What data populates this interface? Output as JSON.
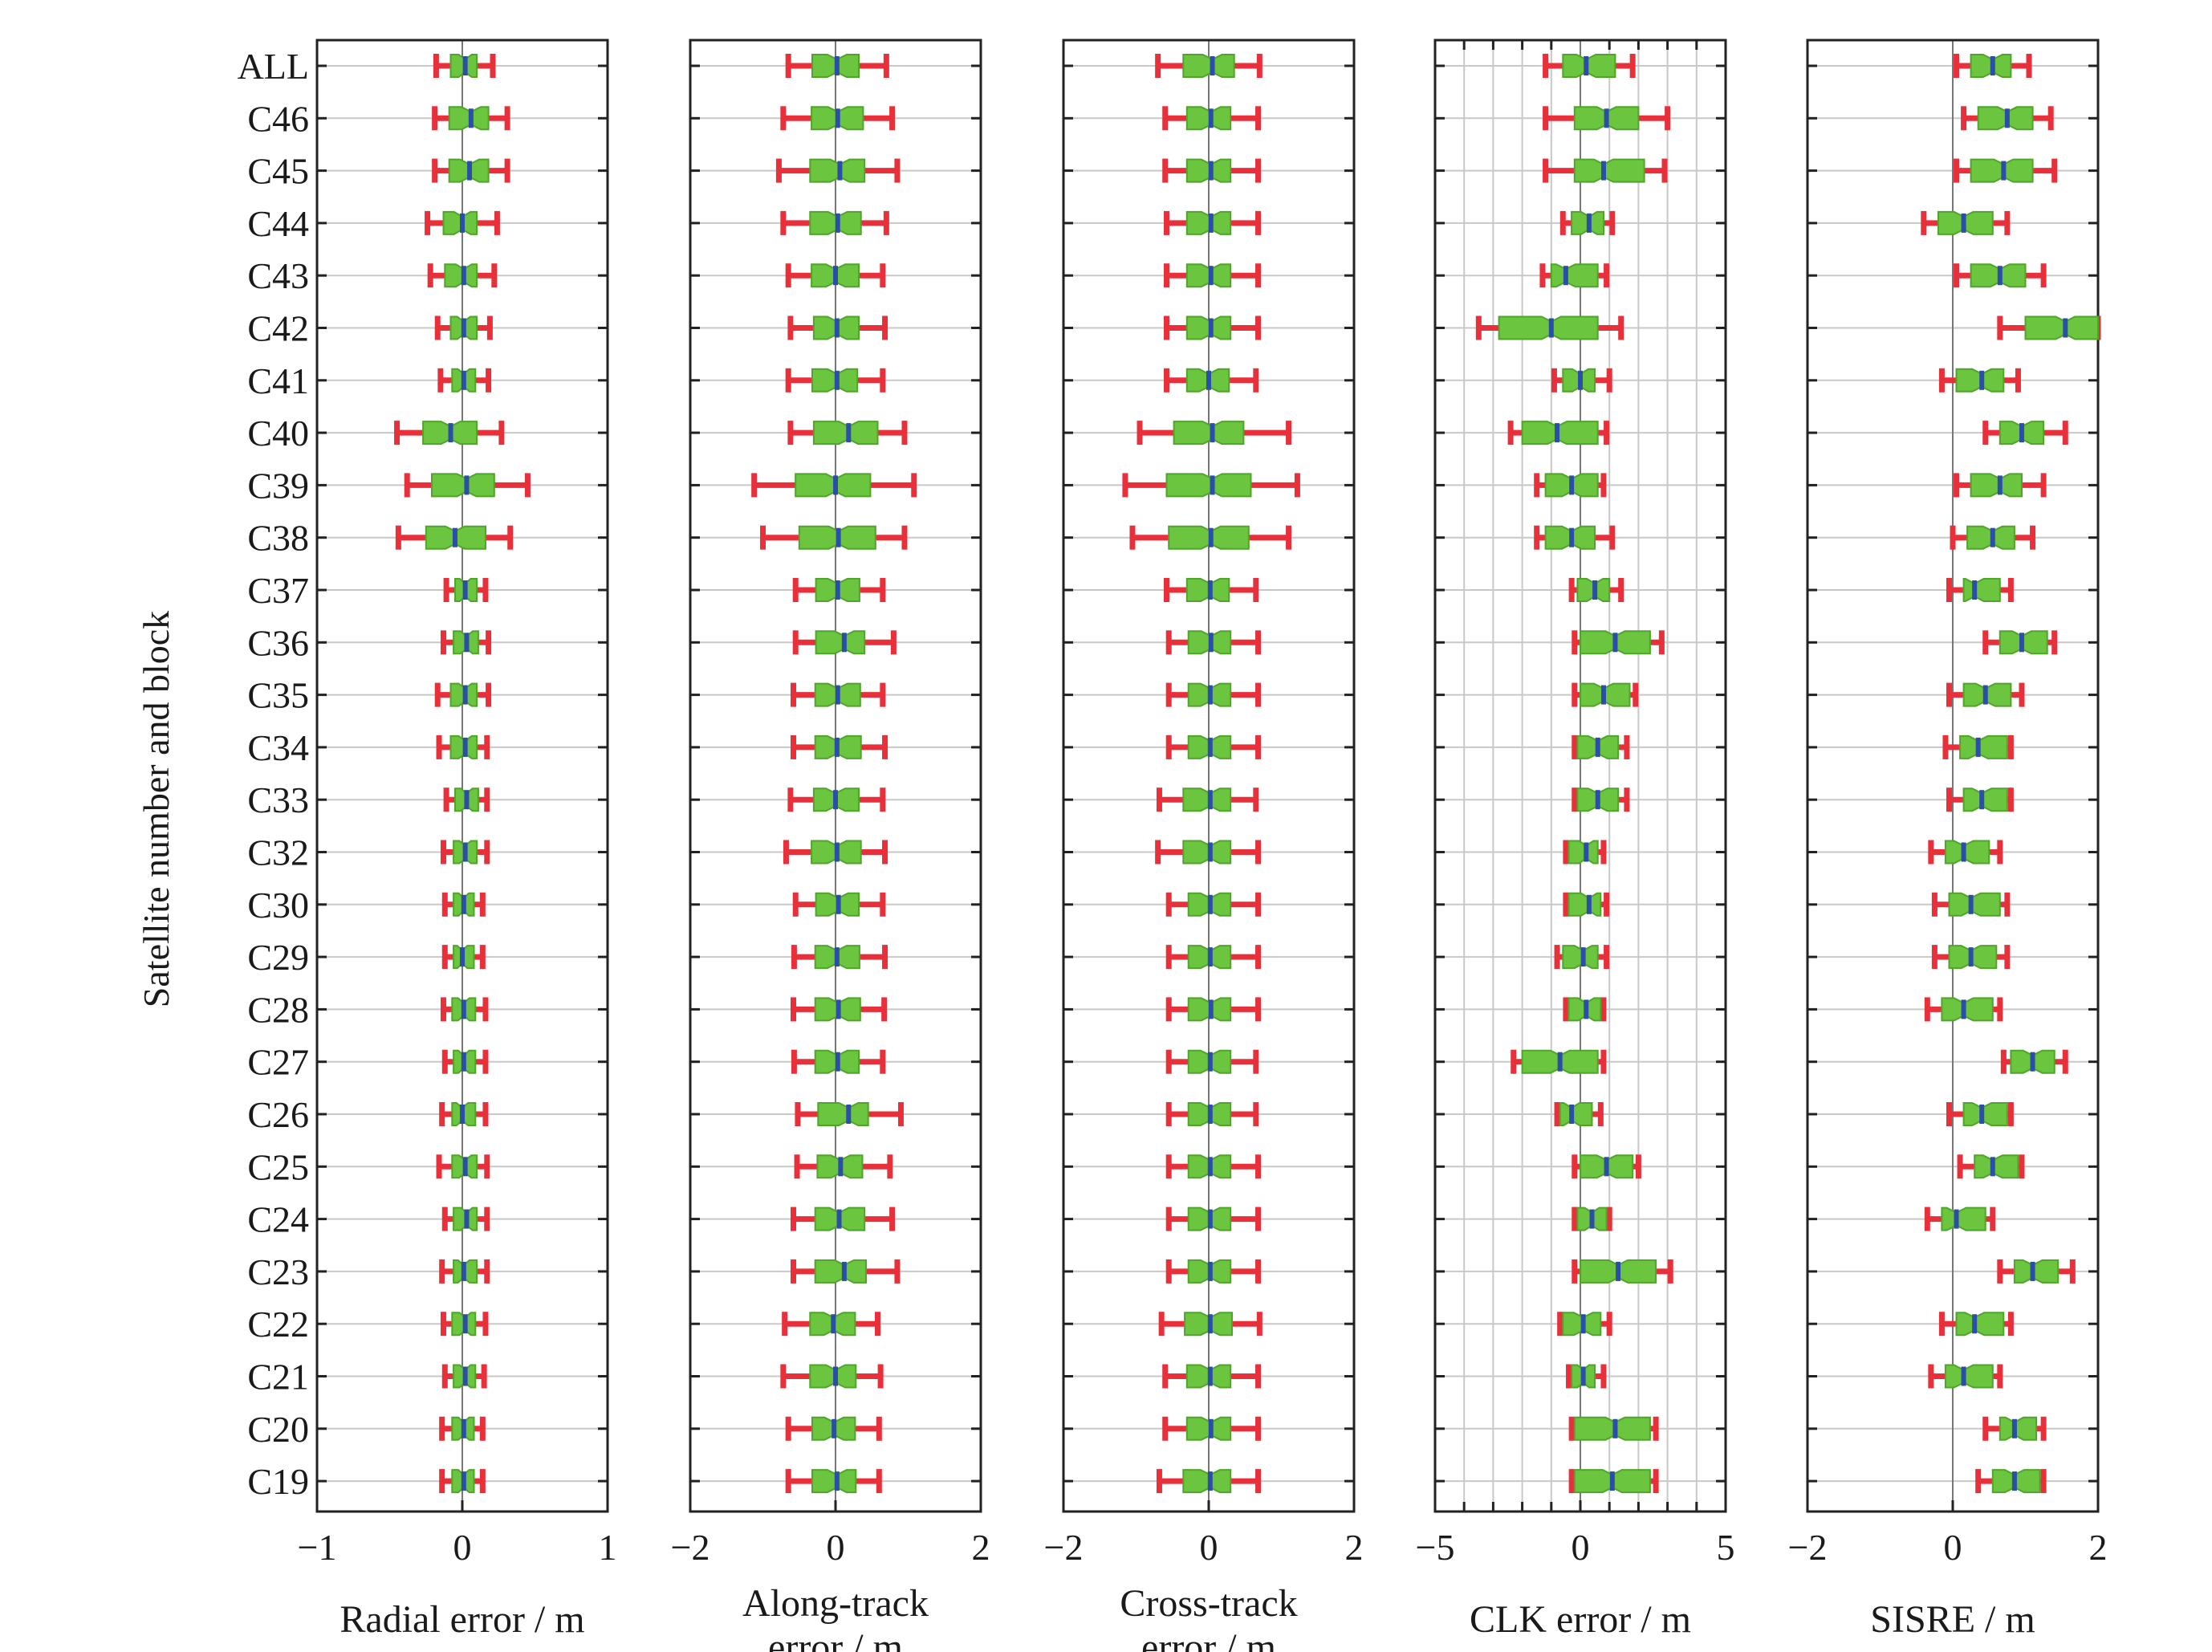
{
  "figure": {
    "ylabel": "Satellite number and block",
    "colors": {
      "whisker": "#e8303b",
      "box": "#6cc53e",
      "median": "#2b4fa8",
      "grid": "#c8c8c8",
      "axis": "#222222"
    }
  },
  "chart_data": [
    {
      "type": "boxplot",
      "xlabel": [
        "Radial error / m"
      ],
      "xlim": [
        -1,
        1
      ],
      "xticks": [
        "−1",
        "0",
        "1"
      ],
      "grid": "horizontal",
      "categories": [
        "ALL",
        "C46",
        "C45",
        "C44",
        "C43",
        "C42",
        "C41",
        "C40",
        "C39",
        "C38",
        "C37",
        "C36",
        "C35",
        "C34",
        "C33",
        "C32",
        "C30",
        "C29",
        "C28",
        "C27",
        "C26",
        "C25",
        "C24",
        "C23",
        "C22",
        "C21",
        "C20",
        "C19"
      ],
      "min": [
        -0.18,
        -0.19,
        -0.19,
        -0.24,
        -0.22,
        -0.17,
        -0.15,
        -0.45,
        -0.38,
        -0.44,
        -0.11,
        -0.13,
        -0.17,
        -0.16,
        -0.11,
        -0.13,
        -0.12,
        -0.12,
        -0.13,
        -0.12,
        -0.14,
        -0.16,
        -0.12,
        -0.14,
        -0.13,
        -0.12,
        -0.14,
        -0.14
      ],
      "q1": [
        -0.08,
        -0.09,
        -0.09,
        -0.13,
        -0.12,
        -0.08,
        -0.07,
        -0.27,
        -0.21,
        -0.25,
        -0.05,
        -0.06,
        -0.08,
        -0.08,
        -0.05,
        -0.06,
        -0.06,
        -0.06,
        -0.07,
        -0.06,
        -0.07,
        -0.07,
        -0.06,
        -0.06,
        -0.07,
        -0.06,
        -0.07,
        -0.07
      ],
      "median": [
        0.02,
        0.06,
        0.05,
        0.0,
        0.01,
        0.01,
        0.01,
        -0.08,
        0.03,
        -0.05,
        0.02,
        0.03,
        0.02,
        0.02,
        0.03,
        0.02,
        0.01,
        0.0,
        0.01,
        0.01,
        0.0,
        0.02,
        0.03,
        0.01,
        0.02,
        0.02,
        0.01,
        0.01
      ],
      "q3": [
        0.1,
        0.18,
        0.18,
        0.1,
        0.1,
        0.1,
        0.09,
        0.1,
        0.22,
        0.16,
        0.1,
        0.11,
        0.1,
        0.1,
        0.11,
        0.1,
        0.08,
        0.08,
        0.09,
        0.09,
        0.09,
        0.1,
        0.1,
        0.1,
        0.09,
        0.09,
        0.08,
        0.08
      ],
      "max": [
        0.21,
        0.31,
        0.31,
        0.24,
        0.22,
        0.19,
        0.18,
        0.27,
        0.45,
        0.33,
        0.16,
        0.18,
        0.18,
        0.17,
        0.17,
        0.17,
        0.14,
        0.14,
        0.16,
        0.16,
        0.16,
        0.17,
        0.17,
        0.17,
        0.16,
        0.15,
        0.14,
        0.14
      ]
    },
    {
      "type": "boxplot",
      "xlabel": [
        "Along-track",
        "error / m"
      ],
      "xlim": [
        -2,
        2
      ],
      "xticks": [
        "−2",
        "0",
        "2"
      ],
      "grid": "horizontal",
      "categories": [
        "ALL",
        "C46",
        "C45",
        "C44",
        "C43",
        "C42",
        "C41",
        "C40",
        "C39",
        "C38",
        "C37",
        "C36",
        "C35",
        "C34",
        "C33",
        "C32",
        "C30",
        "C29",
        "C28",
        "C27",
        "C26",
        "C25",
        "C24",
        "C23",
        "C22",
        "C21",
        "C20",
        "C19"
      ],
      "min": [
        -0.65,
        -0.72,
        -0.78,
        -0.72,
        -0.65,
        -0.62,
        -0.65,
        -0.62,
        -1.12,
        -1.0,
        -0.55,
        -0.55,
        -0.58,
        -0.58,
        -0.62,
        -0.68,
        -0.55,
        -0.57,
        -0.58,
        -0.57,
        -0.52,
        -0.53,
        -0.58,
        -0.58,
        -0.7,
        -0.72,
        -0.65,
        -0.65
      ],
      "q1": [
        -0.32,
        -0.33,
        -0.35,
        -0.35,
        -0.33,
        -0.3,
        -0.32,
        -0.3,
        -0.55,
        -0.5,
        -0.27,
        -0.27,
        -0.28,
        -0.28,
        -0.3,
        -0.33,
        -0.27,
        -0.28,
        -0.28,
        -0.28,
        -0.24,
        -0.25,
        -0.28,
        -0.28,
        -0.35,
        -0.35,
        -0.32,
        -0.32
      ],
      "median": [
        0.02,
        0.03,
        0.06,
        0.03,
        0.0,
        0.02,
        0.02,
        0.18,
        0.0,
        0.04,
        0.03,
        0.12,
        0.03,
        0.02,
        0.0,
        0.02,
        0.04,
        0.02,
        0.04,
        0.03,
        0.18,
        0.07,
        0.05,
        0.12,
        -0.03,
        0.0,
        -0.02,
        0.02
      ],
      "q3": [
        0.32,
        0.38,
        0.4,
        0.35,
        0.32,
        0.32,
        0.3,
        0.58,
        0.48,
        0.55,
        0.33,
        0.4,
        0.34,
        0.35,
        0.32,
        0.35,
        0.32,
        0.33,
        0.34,
        0.32,
        0.45,
        0.37,
        0.4,
        0.42,
        0.27,
        0.28,
        0.27,
        0.28
      ],
      "max": [
        0.7,
        0.78,
        0.85,
        0.7,
        0.65,
        0.68,
        0.65,
        0.95,
        1.08,
        0.95,
        0.65,
        0.8,
        0.65,
        0.68,
        0.65,
        0.68,
        0.65,
        0.68,
        0.67,
        0.65,
        0.9,
        0.75,
        0.78,
        0.85,
        0.58,
        0.62,
        0.6,
        0.6
      ]
    },
    {
      "type": "boxplot",
      "xlabel": [
        "Cross-track",
        "error / m"
      ],
      "xlim": [
        -2,
        2
      ],
      "xticks": [
        "−2",
        "0",
        "2"
      ],
      "grid": "horizontal",
      "categories": [
        "ALL",
        "C46",
        "C45",
        "C44",
        "C43",
        "C42",
        "C41",
        "C40",
        "C39",
        "C38",
        "C37",
        "C36",
        "C35",
        "C34",
        "C33",
        "C32",
        "C30",
        "C29",
        "C28",
        "C27",
        "C26",
        "C25",
        "C24",
        "C23",
        "C22",
        "C21",
        "C20",
        "C19"
      ],
      "min": [
        -0.7,
        -0.6,
        -0.6,
        -0.58,
        -0.58,
        -0.58,
        -0.58,
        -0.95,
        -1.15,
        -1.05,
        -0.58,
        -0.55,
        -0.55,
        -0.55,
        -0.68,
        -0.7,
        -0.55,
        -0.55,
        -0.55,
        -0.55,
        -0.55,
        -0.55,
        -0.55,
        -0.55,
        -0.65,
        -0.6,
        -0.6,
        -0.68
      ],
      "q1": [
        -0.35,
        -0.3,
        -0.3,
        -0.3,
        -0.3,
        -0.3,
        -0.3,
        -0.48,
        -0.58,
        -0.55,
        -0.3,
        -0.28,
        -0.28,
        -0.28,
        -0.35,
        -0.35,
        -0.28,
        -0.28,
        -0.28,
        -0.28,
        -0.28,
        -0.28,
        -0.28,
        -0.28,
        -0.33,
        -0.3,
        -0.3,
        -0.35
      ],
      "median": [
        0.05,
        0.03,
        0.03,
        0.03,
        0.03,
        0.03,
        0.0,
        0.05,
        0.05,
        0.03,
        0.02,
        0.03,
        0.02,
        0.02,
        0.02,
        0.02,
        0.02,
        0.02,
        0.03,
        0.02,
        0.02,
        0.02,
        0.02,
        0.02,
        0.02,
        0.02,
        0.03,
        0.02
      ],
      "q3": [
        0.35,
        0.3,
        0.3,
        0.3,
        0.3,
        0.3,
        0.28,
        0.48,
        0.58,
        0.55,
        0.28,
        0.3,
        0.3,
        0.3,
        0.3,
        0.3,
        0.3,
        0.3,
        0.3,
        0.3,
        0.3,
        0.3,
        0.3,
        0.3,
        0.32,
        0.3,
        0.3,
        0.3
      ],
      "max": [
        0.7,
        0.68,
        0.68,
        0.68,
        0.68,
        0.68,
        0.65,
        1.1,
        1.22,
        1.1,
        0.65,
        0.68,
        0.68,
        0.68,
        0.65,
        0.68,
        0.68,
        0.68,
        0.68,
        0.65,
        0.65,
        0.68,
        0.68,
        0.68,
        0.7,
        0.68,
        0.68,
        0.68
      ]
    },
    {
      "type": "boxplot",
      "xlabel": [
        "CLK error / m"
      ],
      "xlim": [
        -5,
        5
      ],
      "xticks": [
        "−5",
        "0",
        "5"
      ],
      "grid": "both",
      "categories": [
        "ALL",
        "C46",
        "C45",
        "C44",
        "C43",
        "C42",
        "C41",
        "C40",
        "C39",
        "C38",
        "C37",
        "C36",
        "C35",
        "C34",
        "C33",
        "C32",
        "C30",
        "C29",
        "C28",
        "C27",
        "C26",
        "C25",
        "C24",
        "C23",
        "C22",
        "C21",
        "C20",
        "C19"
      ],
      "min": [
        -1.2,
        -1.2,
        -1.2,
        -0.6,
        -1.3,
        -3.5,
        -0.9,
        -2.4,
        -1.5,
        -1.5,
        -0.3,
        -0.2,
        -0.2,
        -0.2,
        -0.2,
        -0.5,
        -0.5,
        -0.8,
        -0.5,
        -2.3,
        -0.8,
        -0.2,
        -0.2,
        -0.2,
        -0.7,
        -0.4,
        -0.3,
        -0.3
      ],
      "q1": [
        -0.6,
        -0.2,
        -0.2,
        -0.3,
        -1.0,
        -2.8,
        -0.6,
        -2.0,
        -1.2,
        -1.2,
        -0.1,
        0.0,
        0.0,
        -0.1,
        -0.1,
        -0.4,
        -0.4,
        -0.6,
        -0.4,
        -2.0,
        -0.7,
        0.0,
        -0.1,
        0.0,
        -0.6,
        -0.3,
        -0.2,
        -0.2
      ],
      "median": [
        0.2,
        0.9,
        0.8,
        0.3,
        -0.5,
        -1.0,
        0.0,
        -0.8,
        -0.3,
        -0.3,
        0.5,
        1.2,
        0.8,
        0.6,
        0.6,
        0.2,
        0.3,
        0.1,
        0.2,
        -0.7,
        -0.3,
        0.9,
        0.4,
        1.3,
        0.1,
        0.1,
        1.2,
        1.1
      ],
      "q3": [
        1.2,
        2.0,
        2.2,
        0.8,
        0.6,
        0.6,
        0.5,
        0.6,
        0.6,
        0.5,
        1.0,
        2.4,
        1.7,
        1.3,
        1.3,
        0.6,
        0.7,
        0.6,
        0.7,
        0.6,
        0.4,
        1.8,
        0.9,
        2.6,
        0.7,
        0.5,
        2.4,
        2.4
      ],
      "max": [
        1.8,
        3.0,
        2.9,
        1.1,
        0.9,
        1.4,
        1.0,
        0.9,
        0.8,
        1.1,
        1.4,
        2.8,
        1.9,
        1.6,
        1.6,
        0.8,
        0.9,
        0.9,
        0.8,
        0.8,
        0.7,
        2.0,
        1.0,
        3.1,
        1.0,
        0.8,
        2.6,
        2.6
      ]
    },
    {
      "type": "boxplot",
      "xlabel": [
        "SISRE / m"
      ],
      "xlim": [
        -2,
        2
      ],
      "xticks": [
        "−2",
        "0",
        "2"
      ],
      "grid": "horizontal",
      "categories": [
        "ALL",
        "C46",
        "C45",
        "C44",
        "C43",
        "C42",
        "C41",
        "C40",
        "C39",
        "C38",
        "C37",
        "C36",
        "C35",
        "C34",
        "C33",
        "C32",
        "C30",
        "C29",
        "C28",
        "C27",
        "C26",
        "C25",
        "C24",
        "C23",
        "C22",
        "C21",
        "C20",
        "C19"
      ],
      "min": [
        0.05,
        0.15,
        0.05,
        -0.4,
        0.05,
        0.65,
        -0.15,
        0.45,
        0.05,
        0.0,
        -0.05,
        0.45,
        -0.05,
        -0.1,
        -0.05,
        -0.3,
        -0.25,
        -0.25,
        -0.35,
        0.7,
        -0.05,
        0.1,
        -0.35,
        0.65,
        -0.15,
        -0.3,
        0.45,
        0.35
      ],
      "q1": [
        0.25,
        0.35,
        0.25,
        -0.2,
        0.25,
        1.0,
        0.05,
        0.65,
        0.25,
        0.2,
        0.15,
        0.65,
        0.15,
        0.1,
        0.15,
        -0.1,
        -0.05,
        -0.05,
        -0.15,
        0.8,
        0.15,
        0.3,
        -0.15,
        0.85,
        0.05,
        -0.1,
        0.65,
        0.55
      ],
      "median": [
        0.55,
        0.75,
        0.7,
        0.15,
        0.65,
        1.55,
        0.4,
        0.95,
        0.65,
        0.55,
        0.3,
        0.95,
        0.45,
        0.35,
        0.4,
        0.15,
        0.25,
        0.25,
        0.15,
        1.1,
        0.4,
        0.55,
        0.05,
        1.1,
        0.3,
        0.15,
        0.85,
        0.85
      ],
      "q3": [
        0.8,
        1.1,
        1.1,
        0.55,
        1.0,
        2.0,
        0.7,
        1.25,
        0.95,
        0.85,
        0.65,
        1.3,
        0.8,
        0.75,
        0.75,
        0.5,
        0.65,
        0.6,
        0.55,
        1.4,
        0.75,
        0.9,
        0.45,
        1.45,
        0.7,
        0.55,
        1.15,
        1.2
      ],
      "max": [
        1.05,
        1.35,
        1.4,
        0.75,
        1.25,
        2.0,
        0.9,
        1.55,
        1.25,
        1.1,
        0.8,
        1.4,
        0.95,
        0.8,
        0.8,
        0.65,
        0.75,
        0.75,
        0.65,
        1.55,
        0.8,
        0.95,
        0.55,
        1.65,
        0.8,
        0.65,
        1.25,
        1.25
      ]
    }
  ]
}
